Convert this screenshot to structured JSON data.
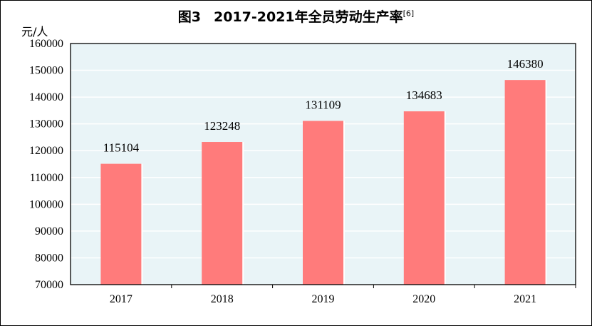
{
  "title": {
    "prefix": "图3",
    "main": "2017-2021年全员劳动生产率",
    "note": "[6]"
  },
  "unit_label": "元/人",
  "colors": {
    "plot_background": "#e9f4f7",
    "bar": "#ff7b7b",
    "grid": "#ffffff",
    "axis": "#000000"
  },
  "chart_data": {
    "type": "bar",
    "title": "2017-2021年全员劳动生产率",
    "ylabel": "元/人",
    "xlabel": "",
    "categories": [
      "2017",
      "2018",
      "2019",
      "2020",
      "2021"
    ],
    "values": [
      115104,
      123248,
      131109,
      134683,
      146380
    ],
    "ylim": [
      70000,
      160000
    ],
    "yticks": [
      70000,
      80000,
      90000,
      100000,
      110000,
      120000,
      130000,
      140000,
      150000,
      160000
    ],
    "grid": true,
    "legend": "none"
  }
}
